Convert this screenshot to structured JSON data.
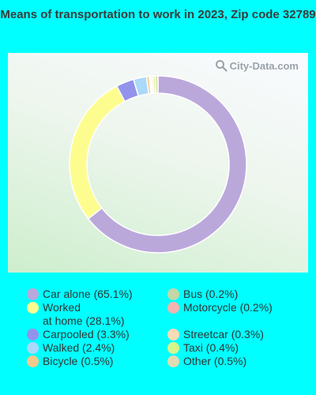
{
  "chart_data": {
    "type": "pie",
    "title": "Means of transportation to work in 2023, Zip code 32789",
    "categories": [
      "Car alone",
      "Worked at home",
      "Carpooled",
      "Walked",
      "Bicycle",
      "Bus",
      "Motorcycle",
      "Streetcar",
      "Taxi",
      "Other"
    ],
    "values": [
      65.1,
      28.1,
      3.3,
      2.4,
      0.5,
      0.2,
      0.2,
      0.3,
      0.4,
      0.5
    ],
    "legend": [
      {
        "line1": "Car alone (65.1%)",
        "line2": "",
        "color": "#bba8db"
      },
      {
        "line1": "Worked",
        "line2": "at home (28.1%)",
        "color": "#fdfd8f"
      },
      {
        "line1": "Carpooled (3.3%)",
        "line2": "",
        "color": "#9393ec"
      },
      {
        "line1": "Walked (2.4%)",
        "line2": "",
        "color": "#abd9fb"
      },
      {
        "line1": "Bicycle (0.5%)",
        "line2": "",
        "color": "#f5c98a"
      },
      {
        "line1": "Bus (0.2%)",
        "line2": "",
        "color": "#c3d8a6"
      },
      {
        "line1": "Motorcycle (0.2%)",
        "line2": "",
        "color": "#f4b4b0"
      },
      {
        "line1": "Streetcar (0.3%)",
        "line2": "",
        "color": "#f8dcb8"
      },
      {
        "line1": "Taxi (0.4%)",
        "line2": "",
        "color": "#d6f58a"
      },
      {
        "line1": "Other (0.5%)",
        "line2": "",
        "color": "#e0dcb2"
      }
    ],
    "slice_order": [
      0,
      1,
      2,
      3,
      4,
      5,
      6,
      7,
      8,
      9
    ],
    "legend_placement": "bottom",
    "start_angle_note": "clockwise from top"
  },
  "watermark": {
    "text": "City-Data.com"
  }
}
